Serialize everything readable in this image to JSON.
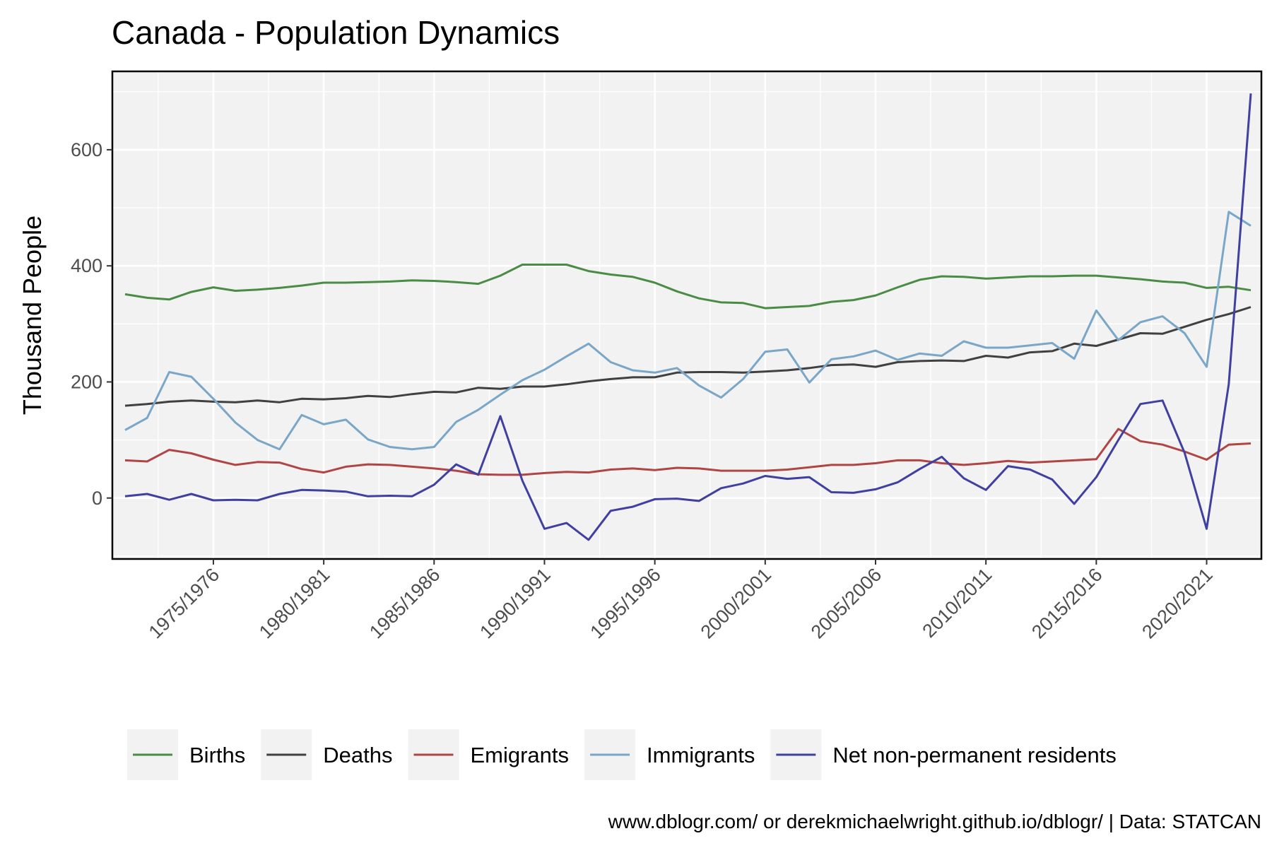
{
  "chart_data": {
    "type": "line",
    "title": "Canada - Population Dynamics",
    "ylabel": "Thousand People",
    "xlabel": "",
    "caption": "www.dblogr.com/ or derekmichaelwright.github.io/dblogr/ | Data: STATCAN",
    "ylim": [
      -105,
      735
    ],
    "yticks": [
      0,
      200,
      400,
      600
    ],
    "x_start_year": 1971,
    "x_tick_labels": [
      "1975/1976",
      "1980/1981",
      "1985/1986",
      "1990/1991",
      "1995/1996",
      "2000/2001",
      "2005/2006",
      "2010/2011",
      "2015/2016",
      "2020/2021"
    ],
    "x_tick_index": [
      4,
      9,
      14,
      19,
      24,
      29,
      34,
      39,
      44,
      49
    ],
    "grid": true,
    "legend_position": "bottom",
    "series": [
      {
        "name": "Births",
        "color": "#4a8c46",
        "values": [
          351,
          345,
          342,
          355,
          363,
          357,
          359,
          362,
          366,
          371,
          371,
          372,
          373,
          375,
          374,
          372,
          369,
          383,
          402,
          402,
          402,
          391,
          385,
          381,
          371,
          356,
          344,
          337,
          336,
          327,
          329,
          331,
          338,
          341,
          349,
          363,
          376,
          382,
          381,
          378,
          380,
          382,
          382,
          383,
          383,
          380,
          377,
          373,
          371,
          362,
          364,
          358
        ]
      },
      {
        "name": "Deaths",
        "color": "#404040",
        "values": [
          159,
          162,
          166,
          168,
          166,
          165,
          168,
          165,
          171,
          170,
          172,
          176,
          174,
          179,
          183,
          182,
          190,
          188,
          192,
          192,
          196,
          201,
          205,
          208,
          208,
          216,
          217,
          217,
          216,
          218,
          220,
          224,
          229,
          230,
          226,
          234,
          236,
          237,
          236,
          245,
          242,
          251,
          253,
          266,
          262,
          273,
          284,
          283,
          295,
          307,
          317,
          329
        ]
      },
      {
        "name": "Emigrants",
        "color": "#b04545",
        "values": [
          65,
          63,
          83,
          77,
          66,
          57,
          62,
          61,
          50,
          44,
          54,
          58,
          57,
          54,
          51,
          47,
          41,
          40,
          40,
          43,
          45,
          44,
          49,
          51,
          48,
          52,
          51,
          47,
          47,
          47,
          49,
          53,
          57,
          57,
          60,
          65,
          65,
          60,
          57,
          60,
          64,
          61,
          63,
          65,
          67,
          119,
          98,
          92,
          80,
          66,
          92,
          94
        ]
      },
      {
        "name": "Immigrants",
        "color": "#7aa6c8",
        "values": [
          117,
          138,
          217,
          209,
          171,
          130,
          100,
          84,
          143,
          127,
          135,
          101,
          88,
          84,
          88,
          131,
          152,
          178,
          203,
          221,
          244,
          266,
          234,
          220,
          216,
          224,
          194,
          173,
          205,
          252,
          256,
          199,
          239,
          244,
          254,
          238,
          249,
          245,
          270,
          259,
          259,
          263,
          267,
          240,
          323,
          272,
          303,
          313,
          284,
          226,
          493,
          469
        ]
      },
      {
        "name": "Net non-permanent residents",
        "color": "#4040a0",
        "values": [
          3,
          7,
          -3,
          7,
          -4,
          -3,
          -4,
          7,
          14,
          13,
          11,
          3,
          4,
          3,
          23,
          58,
          40,
          141,
          30,
          -53,
          -43,
          -72,
          -22,
          -15,
          -2,
          -1,
          -5,
          17,
          25,
          38,
          33,
          36,
          10,
          9,
          15,
          27,
          50,
          71,
          34,
          14,
          55,
          49,
          32,
          -10,
          36,
          100,
          162,
          168,
          78,
          -53,
          196,
          697
        ]
      }
    ]
  }
}
